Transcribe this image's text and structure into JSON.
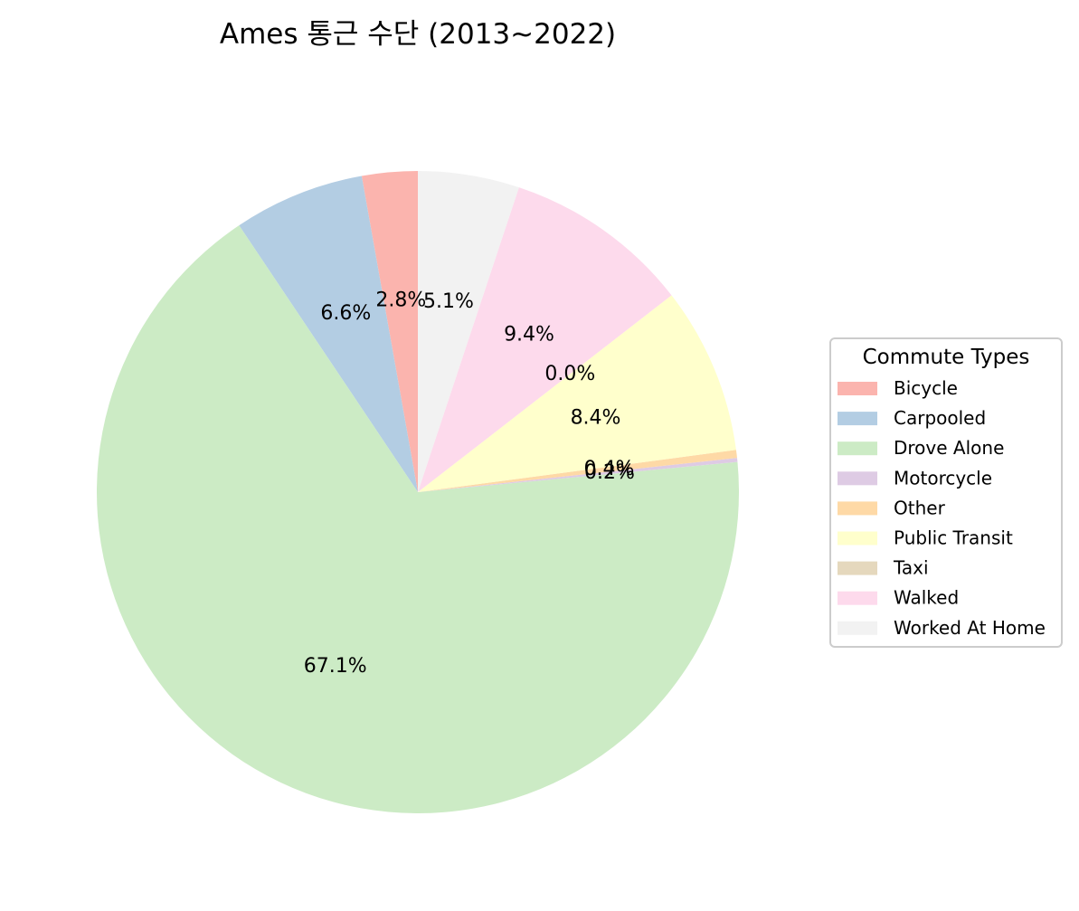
{
  "chart_data": {
    "type": "pie",
    "title": "Ames 통근 수단 (2013~2022)",
    "legend_title": "Commute Types",
    "legend_position": "right",
    "start_angle_degrees": 90,
    "direction": "counterclockwise",
    "slices": [
      {
        "label": "Bicycle",
        "percent": 2.8,
        "pct_label": "2.8%",
        "color": "#fbb4ae"
      },
      {
        "label": "Carpooled",
        "percent": 6.6,
        "pct_label": "6.6%",
        "color": "#b3cde3"
      },
      {
        "label": "Drove Alone",
        "percent": 67.1,
        "pct_label": "67.1%",
        "color": "#ccebc5"
      },
      {
        "label": "Motorcycle",
        "percent": 0.2,
        "pct_label": "0.2%",
        "color": "#decbe4"
      },
      {
        "label": "Other",
        "percent": 0.4,
        "pct_label": "0.4%",
        "color": "#fed9a6"
      },
      {
        "label": "Public Transit",
        "percent": 8.4,
        "pct_label": "8.4%",
        "color": "#ffffcc"
      },
      {
        "label": "Taxi",
        "percent": 0.0,
        "pct_label": "0.0%",
        "color": "#e5d8bd"
      },
      {
        "label": "Walked",
        "percent": 9.4,
        "pct_label": "9.4%",
        "color": "#fddaec"
      },
      {
        "label": "Worked At Home",
        "percent": 5.1,
        "pct_label": "5.1%",
        "color": "#f2f2f2"
      }
    ]
  }
}
